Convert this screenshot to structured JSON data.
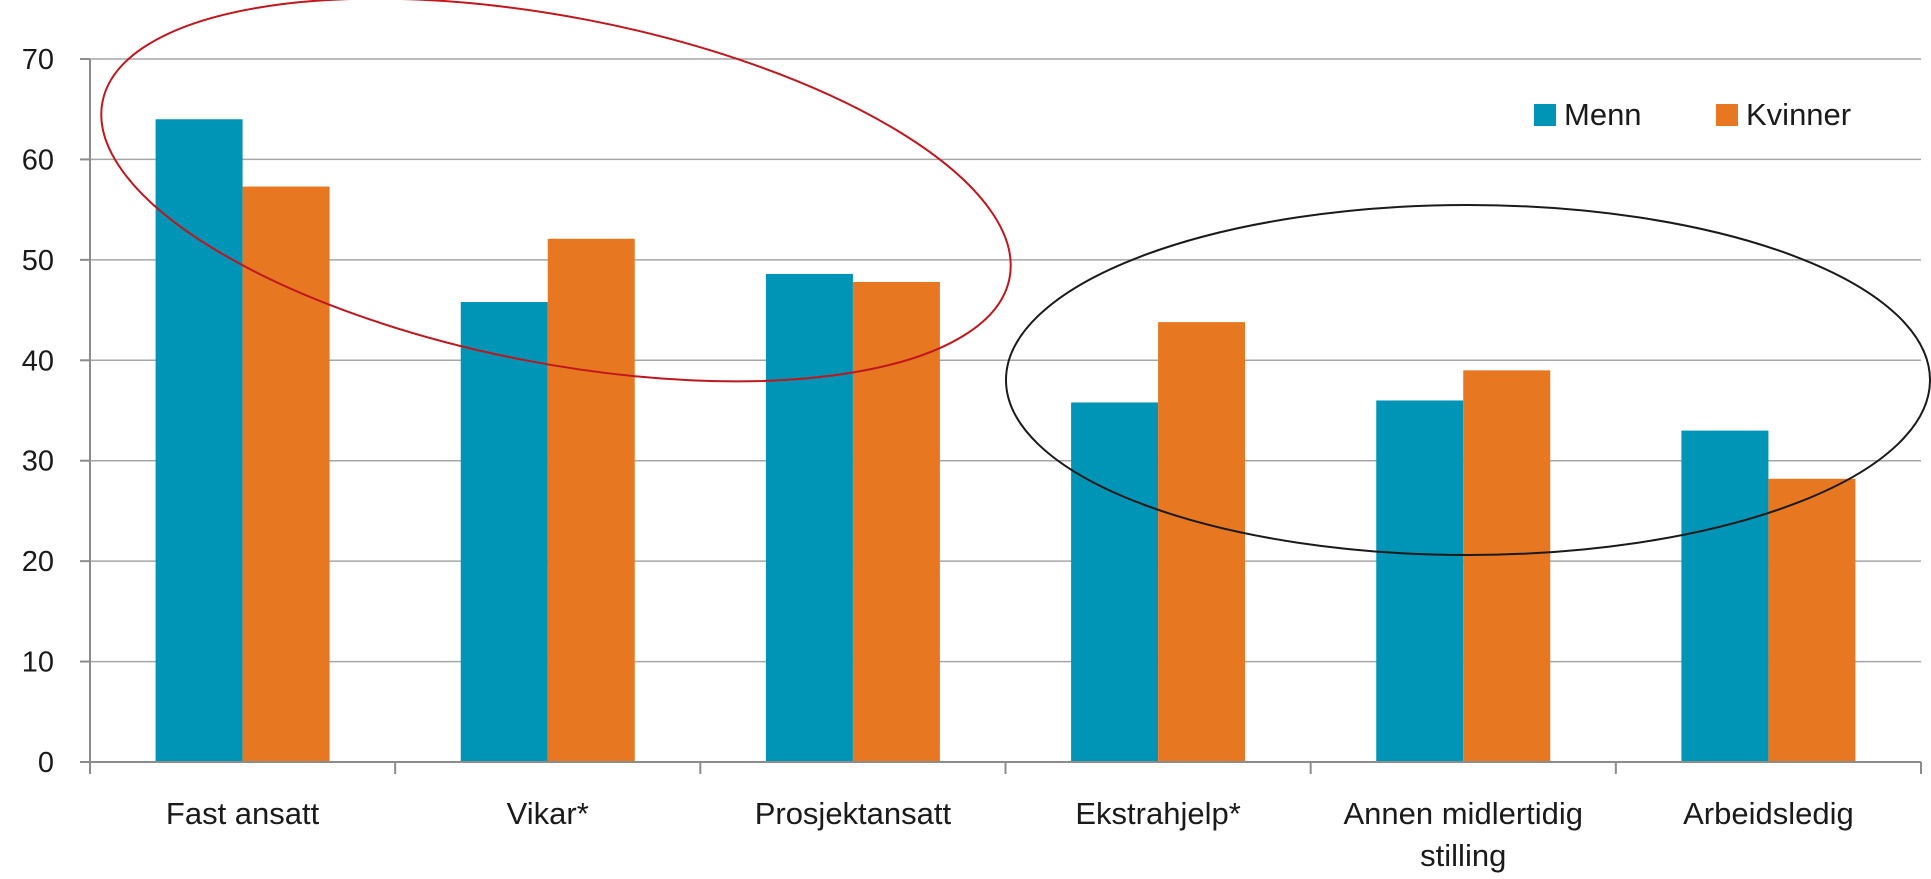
{
  "chart_data": {
    "type": "bar",
    "title": "",
    "xlabel": "",
    "ylabel": "",
    "ylim": [
      0,
      70
    ],
    "yticks": [
      0,
      10,
      20,
      30,
      40,
      50,
      60,
      70
    ],
    "grid": true,
    "legend_position": "top-right",
    "categories": [
      [
        "Fast ansatt"
      ],
      [
        "Vikar*"
      ],
      [
        "Prosjektansatt"
      ],
      [
        "Ekstrahjelp*"
      ],
      [
        "Annen midlertidig",
        "stilling"
      ],
      [
        "Arbeidsledig"
      ]
    ],
    "series": [
      {
        "name": "Menn",
        "color": "#0095b6",
        "values": [
          64.0,
          45.8,
          48.6,
          35.8,
          36.0,
          33.0
        ]
      },
      {
        "name": "Kvinner",
        "color": "#e87722",
        "values": [
          57.3,
          52.1,
          47.8,
          43.8,
          39.0,
          28.2
        ]
      }
    ],
    "annotations": [
      {
        "shape": "ellipse",
        "color": "#c0161e",
        "spans": [
          "Fast ansatt",
          "Prosjektansatt"
        ]
      },
      {
        "shape": "ellipse",
        "color": "#1a1a1a",
        "spans": [
          "Ekstrahjelp*",
          "Arbeidsledig"
        ]
      }
    ]
  }
}
